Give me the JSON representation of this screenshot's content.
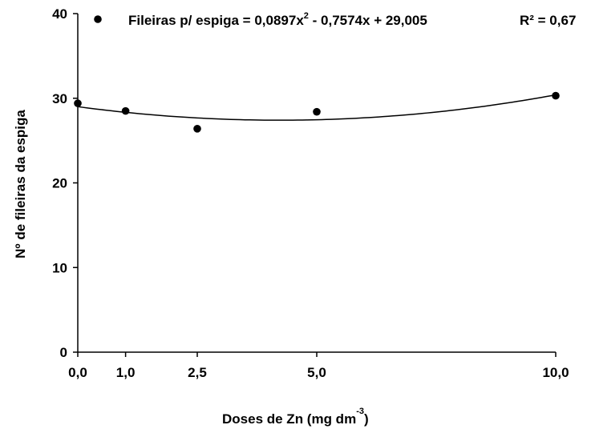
{
  "chart_data": {
    "type": "scatter",
    "title": "",
    "xlabel": "Doses de Zn (mg dm",
    "xlabel_sup": "-3",
    "xlabel_end": ")",
    "ylabel": "Nº de fileiras da espiga",
    "xlim": [
      0,
      10
    ],
    "ylim": [
      0,
      40
    ],
    "x_ticks": [
      0,
      1,
      2.5,
      5,
      10
    ],
    "x_tick_labels": [
      "0,0",
      "1,0",
      "2,5",
      "5,0",
      "10,0"
    ],
    "y_ticks": [
      0,
      10,
      20,
      30,
      40
    ],
    "y_tick_labels": [
      "0",
      "10",
      "20",
      "30",
      "40"
    ],
    "grid": false,
    "legend_position": "top",
    "series": [
      {
        "x": [
          0,
          1,
          2.5,
          5,
          10
        ],
        "y": [
          29.4,
          28.5,
          26.4,
          28.4,
          30.3
        ],
        "marker_color": "#000000"
      }
    ],
    "trendline": {
      "type": "polynomial",
      "coefficients": {
        "a": 0.0897,
        "b": -0.7574,
        "c": 29.005
      },
      "equation_part1": "Fileiras p/ espiga = 0,0897x",
      "equation_sup": "2",
      "equation_part2": " - 0,7574x + 29,005",
      "r_squared_label": "R² = 0,67",
      "color": "#000000"
    }
  }
}
